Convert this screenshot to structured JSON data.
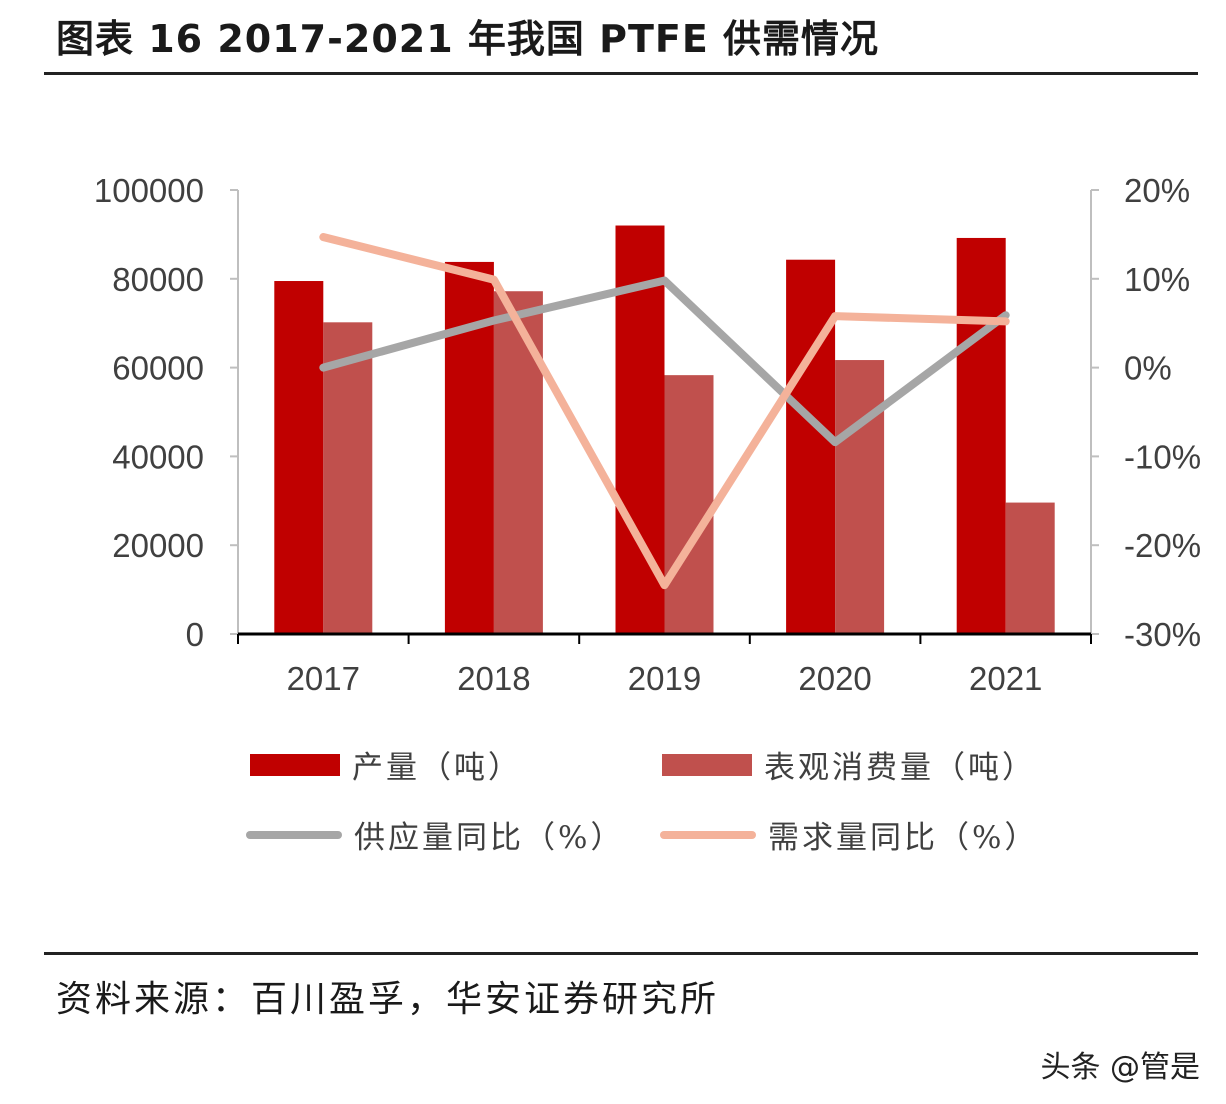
{
  "title": "图表  16 2017-2021 年我国 PTFE 供需情况",
  "source": "资料来源：百川盈孚，华安证券研究所",
  "watermark": "头条 @管是",
  "chart_data": {
    "type": "bar",
    "categories": [
      "2017",
      "2018",
      "2019",
      "2020",
      "2021"
    ],
    "y_left": {
      "ticks": [
        "100000",
        "80000",
        "60000",
        "40000",
        "20000",
        "0"
      ],
      "ylim": [
        0,
        100000
      ]
    },
    "y_right": {
      "ticks": [
        "20%",
        "10%",
        "0%",
        "-10%",
        "-20%",
        "-30%"
      ],
      "ylim": [
        -30,
        20
      ]
    },
    "series": [
      {
        "name": "产量（吨）",
        "kind": "bar",
        "axis": "left",
        "color": "#c00000",
        "values": [
          79500,
          83800,
          92000,
          84300,
          89200
        ]
      },
      {
        "name": "表观消费量（吨）",
        "kind": "bar",
        "axis": "left",
        "color": "#c0504d",
        "values": [
          70200,
          77200,
          58300,
          61700,
          29600
        ]
      },
      {
        "name": "供应量同比（%）",
        "kind": "line",
        "axis": "right",
        "color": "#a6a6a6",
        "values": [
          0,
          5.3,
          9.8,
          -8.4,
          5.9
        ]
      },
      {
        "name": "需求量同比（%）",
        "kind": "line",
        "axis": "right",
        "color": "#f4b29a",
        "values": [
          14.7,
          9.9,
          -24.5,
          5.8,
          5.2
        ]
      }
    ],
    "grid": false,
    "legend_position": "bottom"
  }
}
